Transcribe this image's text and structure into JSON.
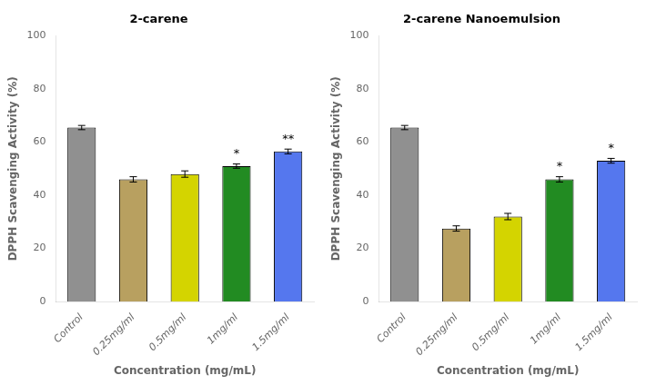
{
  "chart_data": [
    {
      "type": "bar",
      "title": "2-carene",
      "categories": [
        "Control",
        "0.25mg/ml",
        "0.5mg/ml",
        "1mg/ml",
        "1.5mg/ml"
      ],
      "values": [
        65.5,
        46.0,
        48.0,
        51.0,
        56.5
      ],
      "errors": [
        0.8,
        1.0,
        1.2,
        0.8,
        0.9
      ],
      "colors": [
        "#909090",
        "#b8a060",
        "#d4d400",
        "#228B22",
        "#5577ee"
      ],
      "annotations": [
        {
          "x": "1mg/ml",
          "text": "*"
        },
        {
          "x": "1.5mg/ml",
          "text": "**"
        }
      ],
      "xlabel": "Concentration (mg/mL)",
      "ylabel": "DPPH Scavenging Activity (%)",
      "ylim": [
        0,
        100
      ],
      "yticks": [
        0,
        20,
        40,
        60,
        80,
        100
      ],
      "grid": false
    },
    {
      "type": "bar",
      "title": "2-carene Nanoemulsion",
      "categories": [
        "Control",
        "0.25mg/ml",
        "0.5mg/ml",
        "1mg/ml",
        "1.5mg/ml"
      ],
      "values": [
        65.5,
        27.5,
        32.0,
        46.0,
        53.0
      ],
      "errors": [
        0.8,
        1.0,
        1.2,
        1.0,
        0.9
      ],
      "colors": [
        "#909090",
        "#b8a060",
        "#d4d400",
        "#228B22",
        "#5577ee"
      ],
      "annotations": [
        {
          "x": "1mg/ml",
          "text": "*"
        },
        {
          "x": "1.5mg/ml",
          "text": "*"
        }
      ],
      "xlabel": "Concentration (mg/mL)",
      "ylabel": "DPPH Scavenging Activity (%)",
      "ylim": [
        0,
        100
      ],
      "yticks": [
        0,
        20,
        40,
        60,
        80,
        100
      ],
      "grid": false
    }
  ]
}
